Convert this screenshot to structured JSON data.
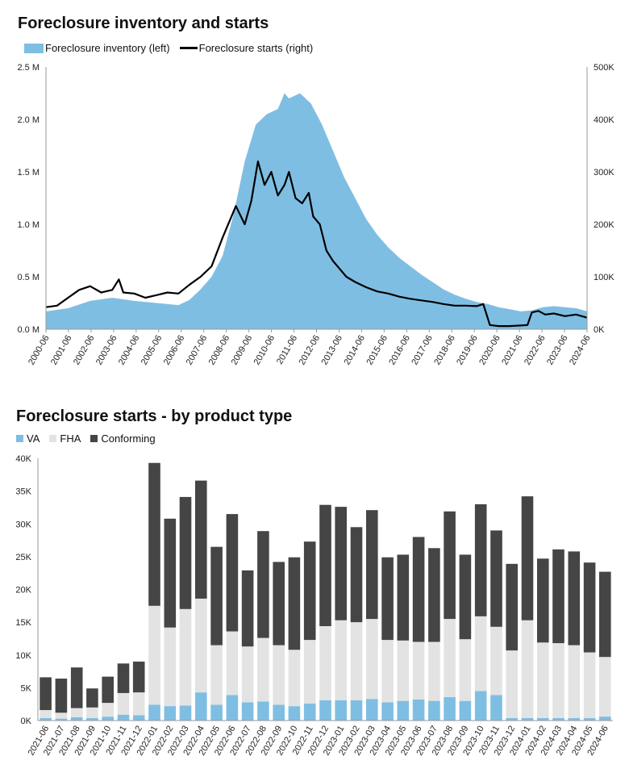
{
  "chart_data": [
    {
      "type": "area+line",
      "title": "Foreclosure inventory and starts",
      "legend": [
        "Foreclosure inventory (left)",
        "Foreclosure starts (right)"
      ],
      "colors": {
        "inventory": "#7fbee3",
        "starts": "#000000"
      },
      "y_left": {
        "ticks": [
          "0.0 M",
          "0.5 M",
          "1.0 M",
          "1.5 M",
          "2.0 M",
          "2.5 M"
        ],
        "lim": [
          0,
          2.5
        ]
      },
      "y_right": {
        "ticks": [
          "0K",
          "100K",
          "200K",
          "300K",
          "400K",
          "500K"
        ],
        "lim": [
          0,
          500
        ]
      },
      "x_ticks": [
        "2000-06",
        "2001-06",
        "2002-06",
        "2003-06",
        "2004-06",
        "2005-06",
        "2006-06",
        "2007-06",
        "2008-06",
        "2009-06",
        "2010-06",
        "2011-06",
        "2012-06",
        "2013-06",
        "2014-06",
        "2015-06",
        "2016-06",
        "2017-06",
        "2018-06",
        "2019-06",
        "2020-06",
        "2021-06",
        "2022-06",
        "2023-06",
        "2024-06"
      ],
      "series": [
        {
          "name": "Foreclosure inventory (left)",
          "unit": "M",
          "points": [
            [
              2000.0,
              0.17
            ],
            [
              2001.0,
              0.2
            ],
            [
              2002.0,
              0.27
            ],
            [
              2003.0,
              0.3
            ],
            [
              2004.0,
              0.27
            ],
            [
              2005.0,
              0.25
            ],
            [
              2006.0,
              0.23
            ],
            [
              2006.5,
              0.28
            ],
            [
              2007.0,
              0.38
            ],
            [
              2007.5,
              0.5
            ],
            [
              2008.0,
              0.7
            ],
            [
              2008.5,
              1.1
            ],
            [
              2009.0,
              1.6
            ],
            [
              2009.5,
              1.95
            ],
            [
              2010.0,
              2.05
            ],
            [
              2010.5,
              2.1
            ],
            [
              2010.8,
              2.25
            ],
            [
              2011.0,
              2.2
            ],
            [
              2011.5,
              2.25
            ],
            [
              2012.0,
              2.15
            ],
            [
              2012.5,
              1.95
            ],
            [
              2013.0,
              1.7
            ],
            [
              2013.5,
              1.45
            ],
            [
              2014.0,
              1.25
            ],
            [
              2014.5,
              1.05
            ],
            [
              2015.0,
              0.9
            ],
            [
              2015.5,
              0.78
            ],
            [
              2016.0,
              0.68
            ],
            [
              2016.5,
              0.6
            ],
            [
              2017.0,
              0.52
            ],
            [
              2017.5,
              0.45
            ],
            [
              2018.0,
              0.38
            ],
            [
              2018.5,
              0.33
            ],
            [
              2019.0,
              0.29
            ],
            [
              2019.5,
              0.26
            ],
            [
              2020.0,
              0.24
            ],
            [
              2020.5,
              0.21
            ],
            [
              2021.0,
              0.19
            ],
            [
              2021.5,
              0.17
            ],
            [
              2022.0,
              0.18
            ],
            [
              2022.5,
              0.21
            ],
            [
              2023.0,
              0.22
            ],
            [
              2023.5,
              0.21
            ],
            [
              2024.0,
              0.2
            ],
            [
              2024.5,
              0.17
            ]
          ]
        },
        {
          "name": "Foreclosure starts (right)",
          "unit": "K",
          "points": [
            [
              2000.0,
              42
            ],
            [
              2000.5,
              45
            ],
            [
              2001.0,
              60
            ],
            [
              2001.5,
              75
            ],
            [
              2002.0,
              82
            ],
            [
              2002.5,
              70
            ],
            [
              2003.0,
              75
            ],
            [
              2003.3,
              95
            ],
            [
              2003.5,
              70
            ],
            [
              2004.0,
              68
            ],
            [
              2004.5,
              60
            ],
            [
              2005.0,
              65
            ],
            [
              2005.5,
              70
            ],
            [
              2006.0,
              68
            ],
            [
              2006.5,
              85
            ],
            [
              2007.0,
              100
            ],
            [
              2007.5,
              120
            ],
            [
              2008.0,
              175
            ],
            [
              2008.3,
              205
            ],
            [
              2008.6,
              235
            ],
            [
              2009.0,
              200
            ],
            [
              2009.3,
              245
            ],
            [
              2009.6,
              320
            ],
            [
              2009.9,
              275
            ],
            [
              2010.2,
              300
            ],
            [
              2010.5,
              255
            ],
            [
              2010.8,
              275
            ],
            [
              2011.0,
              300
            ],
            [
              2011.3,
              250
            ],
            [
              2011.6,
              240
            ],
            [
              2011.9,
              260
            ],
            [
              2012.1,
              215
            ],
            [
              2012.4,
              200
            ],
            [
              2012.7,
              150
            ],
            [
              2013.0,
              130
            ],
            [
              2013.3,
              115
            ],
            [
              2013.6,
              100
            ],
            [
              2014.0,
              90
            ],
            [
              2014.5,
              80
            ],
            [
              2015.0,
              72
            ],
            [
              2015.5,
              68
            ],
            [
              2016.0,
              62
            ],
            [
              2016.5,
              58
            ],
            [
              2017.0,
              55
            ],
            [
              2017.5,
              52
            ],
            [
              2018.0,
              48
            ],
            [
              2018.5,
              45
            ],
            [
              2019.0,
              45
            ],
            [
              2019.5,
              44
            ],
            [
              2019.8,
              48
            ],
            [
              2020.1,
              8
            ],
            [
              2020.5,
              6
            ],
            [
              2021.0,
              6
            ],
            [
              2021.5,
              7
            ],
            [
              2021.8,
              8
            ],
            [
              2022.0,
              32
            ],
            [
              2022.3,
              35
            ],
            [
              2022.6,
              28
            ],
            [
              2023.0,
              30
            ],
            [
              2023.5,
              25
            ],
            [
              2024.0,
              28
            ],
            [
              2024.5,
              22
            ]
          ]
        }
      ]
    },
    {
      "type": "stacked-bar",
      "title": "Foreclosure starts - by  product type",
      "legend": [
        "VA",
        "FHA",
        "Conforming"
      ],
      "colors": {
        "VA": "#7fbee3",
        "FHA": "#e3e3e3",
        "Conforming": "#454545"
      },
      "y_ticks": [
        "0K",
        "5K",
        "10K",
        "15K",
        "20K",
        "25K",
        "30K",
        "35K",
        "40K"
      ],
      "ylim": [
        0,
        40
      ],
      "unit": "K",
      "categories": [
        "2021-06",
        "2021-07",
        "2021-08",
        "2021-09",
        "2021-10",
        "2021-11",
        "2021-12",
        "2022-01",
        "2022-02",
        "2022-03",
        "2022-04",
        "2022-05",
        "2022-06",
        "2022-07",
        "2022-08",
        "2022-09",
        "2022-10",
        "2022-11",
        "2022-12",
        "2023-01",
        "2023-02",
        "2023-03",
        "2023-04",
        "2023-05",
        "2023-06",
        "2023-07",
        "2023-08",
        "2023-09",
        "2023-10",
        "2023-11",
        "2023-12",
        "2024-01",
        "2024-02",
        "2024-03",
        "2024-04",
        "2024-05",
        "2024-06"
      ],
      "series": [
        {
          "name": "VA",
          "values": [
            0.4,
            0.3,
            0.5,
            0.4,
            0.6,
            0.9,
            0.8,
            2.4,
            2.2,
            2.3,
            4.3,
            2.4,
            3.9,
            2.8,
            2.9,
            2.4,
            2.2,
            2.6,
            3.1,
            3.1,
            3.1,
            3.3,
            2.8,
            3.0,
            3.2,
            3.0,
            3.6,
            3.0,
            4.5,
            3.9,
            0.4,
            0.4,
            0.4,
            0.4,
            0.4,
            0.4,
            0.6
          ]
        },
        {
          "name": "FHA",
          "values": [
            1.2,
            0.9,
            1.4,
            1.6,
            2.1,
            3.3,
            3.5,
            15.1,
            12.0,
            14.7,
            14.3,
            9.1,
            9.7,
            8.5,
            9.7,
            9.1,
            8.6,
            9.7,
            11.3,
            12.2,
            11.9,
            12.2,
            9.5,
            9.2,
            8.8,
            9.0,
            11.9,
            9.4,
            11.4,
            10.4,
            10.3,
            14.9,
            11.5,
            11.4,
            11.1,
            10.0,
            9.1
          ]
        },
        {
          "name": "Conforming",
          "values": [
            5.0,
            5.2,
            6.2,
            2.9,
            4.0,
            4.5,
            4.7,
            21.8,
            16.6,
            17.1,
            18.0,
            15.0,
            17.9,
            11.6,
            16.3,
            12.7,
            14.1,
            15.0,
            18.5,
            17.3,
            14.5,
            16.6,
            12.6,
            13.1,
            16.0,
            14.3,
            16.4,
            12.9,
            17.1,
            14.7,
            13.2,
            18.9,
            12.8,
            14.3,
            14.3,
            13.7,
            13.0
          ]
        }
      ]
    }
  ]
}
